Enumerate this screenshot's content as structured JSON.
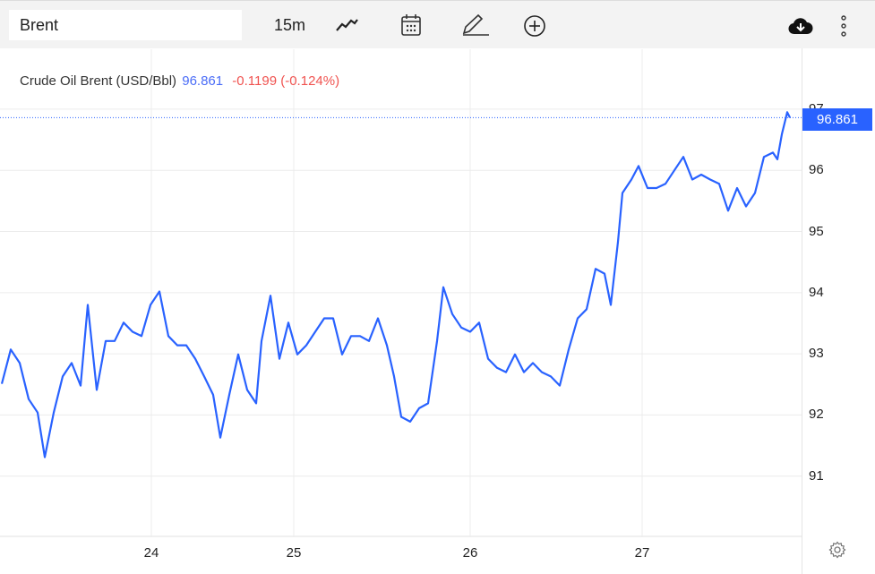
{
  "toolbar": {
    "symbol_value": "Brent",
    "interval": "15m",
    "icons": [
      "line-chart-icon",
      "calendar-icon",
      "pencil-icon",
      "plus-circle-icon",
      "cloud-download-icon",
      "more-vertical-icon"
    ]
  },
  "legend": {
    "name": "Crude Oil Brent (USD/Bbl)",
    "value": "96.861",
    "change": "-0.1199 (-0.124%)"
  },
  "price_tag": "96.861",
  "colors": {
    "line": "#2962ff",
    "down": "#f05350",
    "grid": "#ececec"
  },
  "chart_data": {
    "type": "line",
    "title": "Crude Oil Brent (USD/Bbl)",
    "xlabel": "",
    "ylabel": "",
    "ylim": [
      90,
      97.98
    ],
    "xlim": [
      0,
      89.3
    ],
    "y_ticks": [
      "91",
      "92",
      "93",
      "94",
      "95",
      "96",
      "97"
    ],
    "x_ticks": [
      {
        "label": "24",
        "t": 16.7
      },
      {
        "label": "25",
        "t": 32.6
      },
      {
        "label": "26",
        "t": 52.3
      },
      {
        "label": "27",
        "t": 71.5
      }
    ],
    "last_value": 96.861,
    "series": [
      {
        "name": "Brent",
        "points": [
          [
            0,
            92.51
          ],
          [
            1,
            93.07
          ],
          [
            2,
            92.85
          ],
          [
            3,
            92.26
          ],
          [
            4,
            92.04
          ],
          [
            4.8,
            91.31
          ],
          [
            5.8,
            92.04
          ],
          [
            6.8,
            92.63
          ],
          [
            7.8,
            92.85
          ],
          [
            8.8,
            92.48
          ],
          [
            9.6,
            93.8
          ],
          [
            10.6,
            92.41
          ],
          [
            11.6,
            93.21
          ],
          [
            12.6,
            93.21
          ],
          [
            13.6,
            93.51
          ],
          [
            14.6,
            93.36
          ],
          [
            15.6,
            93.29
          ],
          [
            16.6,
            93.8
          ],
          [
            17.6,
            94.02
          ],
          [
            18.6,
            93.29
          ],
          [
            19.6,
            93.14
          ],
          [
            20.6,
            93.14
          ],
          [
            21.6,
            92.92
          ],
          [
            22.6,
            92.63
          ],
          [
            23.6,
            92.33
          ],
          [
            24.4,
            91.63
          ],
          [
            25.4,
            92.33
          ],
          [
            26.4,
            92.99
          ],
          [
            27.4,
            92.41
          ],
          [
            28.4,
            92.19
          ],
          [
            29,
            93.21
          ],
          [
            30,
            93.95
          ],
          [
            31,
            92.92
          ],
          [
            32,
            93.51
          ],
          [
            33,
            92.99
          ],
          [
            34,
            93.14
          ],
          [
            35,
            93.36
          ],
          [
            36,
            93.58
          ],
          [
            37,
            93.58
          ],
          [
            38,
            92.99
          ],
          [
            39,
            93.29
          ],
          [
            40,
            93.29
          ],
          [
            41,
            93.21
          ],
          [
            42,
            93.58
          ],
          [
            43,
            93.14
          ],
          [
            43.8,
            92.63
          ],
          [
            44.6,
            91.97
          ],
          [
            45.6,
            91.89
          ],
          [
            46.6,
            92.11
          ],
          [
            47.6,
            92.19
          ],
          [
            48.6,
            93.21
          ],
          [
            49.3,
            94.09
          ],
          [
            50.3,
            93.65
          ],
          [
            51.3,
            93.43
          ],
          [
            52.3,
            93.36
          ],
          [
            53.3,
            93.51
          ],
          [
            54.3,
            92.92
          ],
          [
            55.3,
            92.77
          ],
          [
            56.3,
            92.7
          ],
          [
            57.3,
            92.99
          ],
          [
            58.3,
            92.7
          ],
          [
            59.3,
            92.85
          ],
          [
            60.3,
            92.7
          ],
          [
            61.3,
            92.63
          ],
          [
            62.3,
            92.48
          ],
          [
            63.3,
            93.07
          ],
          [
            64.3,
            93.58
          ],
          [
            65.3,
            93.73
          ],
          [
            66.3,
            94.39
          ],
          [
            67.3,
            94.31
          ],
          [
            68,
            93.8
          ],
          [
            68.8,
            94.83
          ],
          [
            69.3,
            95.63
          ],
          [
            70.3,
            95.85
          ],
          [
            71.1,
            96.07
          ],
          [
            72.1,
            95.71
          ],
          [
            73.1,
            95.71
          ],
          [
            74.1,
            95.78
          ],
          [
            75.1,
            96
          ],
          [
            76.1,
            96.22
          ],
          [
            77.1,
            95.85
          ],
          [
            78.1,
            95.93
          ],
          [
            79.1,
            95.85
          ],
          [
            80.1,
            95.78
          ],
          [
            81.1,
            95.34
          ],
          [
            82.1,
            95.71
          ],
          [
            83.1,
            95.41
          ],
          [
            84.1,
            95.63
          ],
          [
            85.1,
            96.22
          ],
          [
            86.1,
            96.29
          ],
          [
            86.6,
            96.18
          ],
          [
            87.1,
            96.59
          ],
          [
            87.7,
            96.95
          ],
          [
            88,
            96.861
          ]
        ]
      }
    ]
  }
}
